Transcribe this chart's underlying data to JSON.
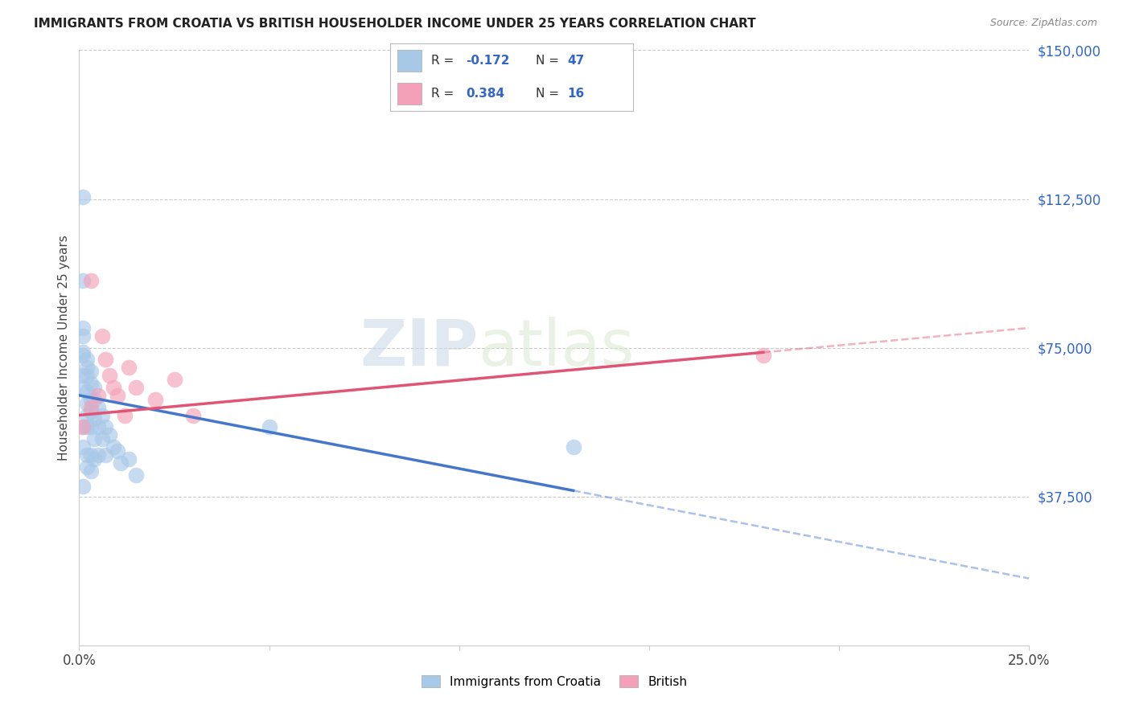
{
  "title": "IMMIGRANTS FROM CROATIA VS BRITISH HOUSEHOLDER INCOME UNDER 25 YEARS CORRELATION CHART",
  "source": "Source: ZipAtlas.com",
  "ylabel": "Householder Income Under 25 years",
  "watermark_zip": "ZIP",
  "watermark_atlas": "atlas",
  "xlim": [
    0.0,
    0.25
  ],
  "ylim": [
    0,
    150000
  ],
  "croatia_R": -0.172,
  "croatia_N": 47,
  "british_R": 0.384,
  "british_N": 16,
  "croatia_color": "#a8c8e8",
  "british_color": "#f4a0b8",
  "croatia_line_color": "#4477cc",
  "british_line_color": "#e05575",
  "bg_color": "#ffffff",
  "grid_color": "#cccccc",
  "ytick_right_labels": [
    "$150,000",
    "$112,500",
    "$75,000",
    "$37,500"
  ],
  "ytick_right_positions": [
    150000,
    112500,
    75000,
    37500
  ],
  "croatia_x": [
    0.001,
    0.001,
    0.001,
    0.001,
    0.001,
    0.001,
    0.001,
    0.001,
    0.001,
    0.001,
    0.002,
    0.002,
    0.002,
    0.002,
    0.002,
    0.002,
    0.002,
    0.002,
    0.002,
    0.003,
    0.003,
    0.003,
    0.003,
    0.003,
    0.003,
    0.003,
    0.004,
    0.004,
    0.004,
    0.004,
    0.004,
    0.005,
    0.005,
    0.005,
    0.006,
    0.006,
    0.007,
    0.007,
    0.008,
    0.009,
    0.01,
    0.011,
    0.013,
    0.015,
    0.05,
    0.13,
    0.001
  ],
  "croatia_y": [
    113000,
    92000,
    80000,
    78000,
    74000,
    73000,
    68000,
    65000,
    55000,
    50000,
    72000,
    70000,
    68000,
    64000,
    61000,
    58000,
    55000,
    48000,
    45000,
    69000,
    66000,
    62000,
    59000,
    55000,
    48000,
    44000,
    65000,
    62000,
    57000,
    52000,
    47000,
    60000,
    55000,
    48000,
    58000,
    52000,
    55000,
    48000,
    53000,
    50000,
    49000,
    46000,
    47000,
    43000,
    55000,
    50000,
    40000
  ],
  "british_x": [
    0.001,
    0.003,
    0.005,
    0.006,
    0.007,
    0.008,
    0.009,
    0.01,
    0.012,
    0.013,
    0.015,
    0.02,
    0.025,
    0.03,
    0.18,
    0.003
  ],
  "british_y": [
    55000,
    60000,
    63000,
    78000,
    72000,
    68000,
    65000,
    63000,
    58000,
    70000,
    65000,
    62000,
    67000,
    58000,
    73000,
    92000
  ],
  "croatia_line_x0": 0.0,
  "croatia_line_y0": 63000,
  "croatia_line_x1": 0.13,
  "croatia_line_y1": 39000,
  "british_line_x0": 0.0,
  "british_line_y0": 58000,
  "british_line_x1": 0.25,
  "british_line_y1": 80000
}
